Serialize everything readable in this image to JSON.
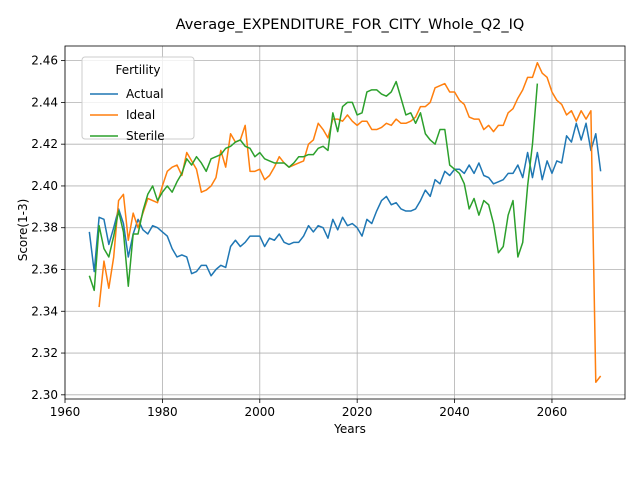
{
  "chart_data": {
    "type": "line",
    "title": "Average_EXPENDITURE_FOR_CITY_Whole_Q2_IQ",
    "xlabel": "Years",
    "ylabel": "Score(1-3)",
    "xlim": [
      1960,
      2075
    ],
    "ylim": [
      2.298,
      2.467
    ],
    "xticks": [
      1960,
      1980,
      2000,
      2020,
      2040,
      2060
    ],
    "yticks": [
      2.3,
      2.32,
      2.34,
      2.36,
      2.38,
      2.4,
      2.42,
      2.44,
      2.46
    ],
    "grid": true,
    "legend": {
      "title": "Fertility",
      "placement": "top-left"
    },
    "series": [
      {
        "name": "Actual",
        "color": "#1f77b4",
        "points": [
          [
            1965,
            2.378
          ],
          [
            1966,
            2.359
          ],
          [
            1967,
            2.385
          ],
          [
            1968,
            2.384
          ],
          [
            1969,
            2.372
          ],
          [
            1970,
            2.38
          ],
          [
            1971,
            2.389
          ],
          [
            1972,
            2.382
          ],
          [
            1973,
            2.366
          ],
          [
            1974,
            2.377
          ],
          [
            1975,
            2.384
          ],
          [
            1976,
            2.379
          ],
          [
            1977,
            2.377
          ],
          [
            1978,
            2.381
          ],
          [
            1979,
            2.38
          ],
          [
            1980,
            2.378
          ],
          [
            1981,
            2.376
          ],
          [
            1982,
            2.37
          ],
          [
            1983,
            2.366
          ],
          [
            1984,
            2.367
          ],
          [
            1985,
            2.366
          ],
          [
            1986,
            2.358
          ],
          [
            1987,
            2.359
          ],
          [
            1988,
            2.362
          ],
          [
            1989,
            2.362
          ],
          [
            1990,
            2.357
          ],
          [
            1991,
            2.36
          ],
          [
            1992,
            2.362
          ],
          [
            1993,
            2.361
          ],
          [
            1994,
            2.371
          ],
          [
            1995,
            2.374
          ],
          [
            1996,
            2.371
          ],
          [
            1997,
            2.373
          ],
          [
            1998,
            2.376
          ],
          [
            1999,
            2.376
          ],
          [
            2000,
            2.376
          ],
          [
            2001,
            2.371
          ],
          [
            2002,
            2.375
          ],
          [
            2003,
            2.374
          ],
          [
            2004,
            2.377
          ],
          [
            2005,
            2.373
          ],
          [
            2006,
            2.372
          ],
          [
            2007,
            2.373
          ],
          [
            2008,
            2.373
          ],
          [
            2009,
            2.376
          ],
          [
            2010,
            2.381
          ],
          [
            2011,
            2.378
          ],
          [
            2012,
            2.381
          ],
          [
            2013,
            2.38
          ],
          [
            2014,
            2.375
          ],
          [
            2015,
            2.384
          ],
          [
            2016,
            2.379
          ],
          [
            2017,
            2.385
          ],
          [
            2018,
            2.381
          ],
          [
            2019,
            2.382
          ],
          [
            2020,
            2.38
          ],
          [
            2021,
            2.376
          ],
          [
            2022,
            2.384
          ],
          [
            2023,
            2.382
          ],
          [
            2024,
            2.388
          ],
          [
            2025,
            2.393
          ],
          [
            2026,
            2.395
          ],
          [
            2027,
            2.391
          ],
          [
            2028,
            2.392
          ],
          [
            2029,
            2.389
          ],
          [
            2030,
            2.388
          ],
          [
            2031,
            2.388
          ],
          [
            2032,
            2.389
          ],
          [
            2033,
            2.393
          ],
          [
            2034,
            2.398
          ],
          [
            2035,
            2.395
          ],
          [
            2036,
            2.403
          ],
          [
            2037,
            2.401
          ],
          [
            2038,
            2.407
          ],
          [
            2039,
            2.405
          ],
          [
            2040,
            2.408
          ],
          [
            2041,
            2.408
          ],
          [
            2042,
            2.406
          ],
          [
            2043,
            2.41
          ],
          [
            2044,
            2.406
          ],
          [
            2045,
            2.411
          ],
          [
            2046,
            2.405
          ],
          [
            2047,
            2.404
          ],
          [
            2048,
            2.401
          ],
          [
            2049,
            2.402
          ],
          [
            2050,
            2.403
          ],
          [
            2051,
            2.406
          ],
          [
            2052,
            2.406
          ],
          [
            2053,
            2.41
          ],
          [
            2054,
            2.404
          ],
          [
            2055,
            2.416
          ],
          [
            2056,
            2.404
          ],
          [
            2057,
            2.416
          ],
          [
            2058,
            2.403
          ],
          [
            2059,
            2.412
          ],
          [
            2060,
            2.406
          ],
          [
            2061,
            2.412
          ],
          [
            2062,
            2.411
          ],
          [
            2063,
            2.424
          ],
          [
            2064,
            2.421
          ],
          [
            2065,
            2.43
          ],
          [
            2066,
            2.422
          ],
          [
            2067,
            2.43
          ],
          [
            2068,
            2.417
          ],
          [
            2069,
            2.425
          ],
          [
            2070,
            2.407
          ]
        ]
      },
      {
        "name": "Ideal",
        "color": "#ff7f0e",
        "points": [
          [
            1967,
            2.342
          ],
          [
            1968,
            2.364
          ],
          [
            1969,
            2.351
          ],
          [
            1970,
            2.366
          ],
          [
            1971,
            2.393
          ],
          [
            1972,
            2.396
          ],
          [
            1973,
            2.374
          ],
          [
            1974,
            2.387
          ],
          [
            1975,
            2.38
          ],
          [
            1976,
            2.387
          ],
          [
            1977,
            2.394
          ],
          [
            1978,
            2.393
          ],
          [
            1979,
            2.392
          ],
          [
            1980,
            2.4
          ],
          [
            1981,
            2.407
          ],
          [
            1982,
            2.409
          ],
          [
            1983,
            2.41
          ],
          [
            1984,
            2.405
          ],
          [
            1985,
            2.416
          ],
          [
            1986,
            2.412
          ],
          [
            1987,
            2.408
          ],
          [
            1988,
            2.397
          ],
          [
            1989,
            2.398
          ],
          [
            1990,
            2.4
          ],
          [
            1991,
            2.404
          ],
          [
            1992,
            2.417
          ],
          [
            1993,
            2.409
          ],
          [
            1994,
            2.425
          ],
          [
            1995,
            2.421
          ],
          [
            1996,
            2.422
          ],
          [
            1997,
            2.429
          ],
          [
            1998,
            2.407
          ],
          [
            1999,
            2.407
          ],
          [
            2000,
            2.408
          ],
          [
            2001,
            2.403
          ],
          [
            2002,
            2.405
          ],
          [
            2003,
            2.409
          ],
          [
            2004,
            2.414
          ],
          [
            2005,
            2.411
          ],
          [
            2006,
            2.409
          ],
          [
            2007,
            2.41
          ],
          [
            2008,
            2.411
          ],
          [
            2009,
            2.412
          ],
          [
            2010,
            2.42
          ],
          [
            2011,
            2.422
          ],
          [
            2012,
            2.43
          ],
          [
            2013,
            2.427
          ],
          [
            2014,
            2.423
          ],
          [
            2015,
            2.432
          ],
          [
            2016,
            2.432
          ],
          [
            2017,
            2.431
          ],
          [
            2018,
            2.434
          ],
          [
            2019,
            2.431
          ],
          [
            2020,
            2.429
          ],
          [
            2021,
            2.431
          ],
          [
            2022,
            2.431
          ],
          [
            2023,
            2.427
          ],
          [
            2024,
            2.427
          ],
          [
            2025,
            2.428
          ],
          [
            2026,
            2.43
          ],
          [
            2027,
            2.429
          ],
          [
            2028,
            2.432
          ],
          [
            2029,
            2.43
          ],
          [
            2030,
            2.43
          ],
          [
            2031,
            2.431
          ],
          [
            2032,
            2.433
          ],
          [
            2033,
            2.438
          ],
          [
            2034,
            2.438
          ],
          [
            2035,
            2.44
          ],
          [
            2036,
            2.447
          ],
          [
            2037,
            2.448
          ],
          [
            2038,
            2.449
          ],
          [
            2039,
            2.445
          ],
          [
            2040,
            2.445
          ],
          [
            2041,
            2.441
          ],
          [
            2042,
            2.439
          ],
          [
            2043,
            2.433
          ],
          [
            2044,
            2.432
          ],
          [
            2045,
            2.432
          ],
          [
            2046,
            2.427
          ],
          [
            2047,
            2.429
          ],
          [
            2048,
            2.426
          ],
          [
            2049,
            2.429
          ],
          [
            2050,
            2.429
          ],
          [
            2051,
            2.435
          ],
          [
            2052,
            2.437
          ],
          [
            2053,
            2.442
          ],
          [
            2054,
            2.446
          ],
          [
            2055,
            2.452
          ],
          [
            2056,
            2.452
          ],
          [
            2057,
            2.459
          ],
          [
            2058,
            2.454
          ],
          [
            2059,
            2.452
          ],
          [
            2060,
            2.445
          ],
          [
            2061,
            2.441
          ],
          [
            2062,
            2.439
          ],
          [
            2063,
            2.434
          ],
          [
            2064,
            2.436
          ],
          [
            2065,
            2.431
          ],
          [
            2066,
            2.436
          ],
          [
            2067,
            2.432
          ],
          [
            2068,
            2.436
          ],
          [
            2069,
            2.306
          ],
          [
            2070,
            2.309
          ]
        ]
      },
      {
        "name": "Sterile",
        "color": "#2ca02c",
        "points": [
          [
            1965,
            2.357
          ],
          [
            1966,
            2.35
          ],
          [
            1967,
            2.381
          ],
          [
            1968,
            2.37
          ],
          [
            1969,
            2.366
          ],
          [
            1970,
            2.376
          ],
          [
            1971,
            2.388
          ],
          [
            1972,
            2.378
          ],
          [
            1973,
            2.352
          ],
          [
            1974,
            2.377
          ],
          [
            1975,
            2.377
          ],
          [
            1976,
            2.388
          ],
          [
            1977,
            2.396
          ],
          [
            1978,
            2.4
          ],
          [
            1979,
            2.393
          ],
          [
            1980,
            2.397
          ],
          [
            1981,
            2.4
          ],
          [
            1982,
            2.397
          ],
          [
            1983,
            2.402
          ],
          [
            1984,
            2.406
          ],
          [
            1985,
            2.413
          ],
          [
            1986,
            2.41
          ],
          [
            1987,
            2.414
          ],
          [
            1988,
            2.411
          ],
          [
            1989,
            2.407
          ],
          [
            1990,
            2.413
          ],
          [
            1991,
            2.414
          ],
          [
            1992,
            2.415
          ],
          [
            1993,
            2.418
          ],
          [
            1994,
            2.419
          ],
          [
            1995,
            2.421
          ],
          [
            1996,
            2.422
          ],
          [
            1997,
            2.419
          ],
          [
            1998,
            2.418
          ],
          [
            1999,
            2.414
          ],
          [
            2000,
            2.416
          ],
          [
            2001,
            2.413
          ],
          [
            2002,
            2.412
          ],
          [
            2003,
            2.411
          ],
          [
            2004,
            2.411
          ],
          [
            2005,
            2.411
          ],
          [
            2006,
            2.409
          ],
          [
            2007,
            2.411
          ],
          [
            2008,
            2.414
          ],
          [
            2009,
            2.414
          ],
          [
            2010,
            2.415
          ],
          [
            2011,
            2.415
          ],
          [
            2012,
            2.418
          ],
          [
            2013,
            2.419
          ],
          [
            2014,
            2.417
          ],
          [
            2015,
            2.435
          ],
          [
            2016,
            2.426
          ],
          [
            2017,
            2.438
          ],
          [
            2018,
            2.44
          ],
          [
            2019,
            2.44
          ],
          [
            2020,
            2.434
          ],
          [
            2021,
            2.435
          ],
          [
            2022,
            2.445
          ],
          [
            2023,
            2.446
          ],
          [
            2024,
            2.446
          ],
          [
            2025,
            2.444
          ],
          [
            2026,
            2.443
          ],
          [
            2027,
            2.445
          ],
          [
            2028,
            2.45
          ],
          [
            2029,
            2.442
          ],
          [
            2030,
            2.434
          ],
          [
            2031,
            2.435
          ],
          [
            2032,
            2.43
          ],
          [
            2033,
            2.435
          ],
          [
            2034,
            2.425
          ],
          [
            2035,
            2.422
          ],
          [
            2036,
            2.42
          ],
          [
            2037,
            2.427
          ],
          [
            2038,
            2.427
          ],
          [
            2039,
            2.41
          ],
          [
            2040,
            2.408
          ],
          [
            2041,
            2.406
          ],
          [
            2042,
            2.401
          ],
          [
            2043,
            2.389
          ],
          [
            2044,
            2.394
          ],
          [
            2045,
            2.386
          ],
          [
            2046,
            2.393
          ],
          [
            2047,
            2.391
          ],
          [
            2048,
            2.382
          ],
          [
            2049,
            2.368
          ],
          [
            2050,
            2.371
          ],
          [
            2051,
            2.386
          ],
          [
            2052,
            2.393
          ],
          [
            2053,
            2.366
          ],
          [
            2054,
            2.373
          ],
          [
            2055,
            2.4
          ],
          [
            2056,
            2.42
          ],
          [
            2057,
            2.449
          ]
        ]
      }
    ]
  }
}
